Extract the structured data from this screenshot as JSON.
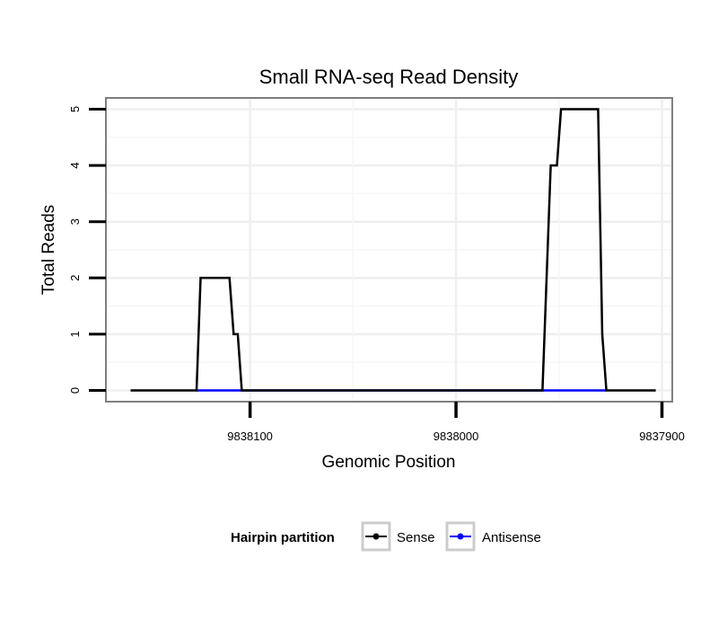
{
  "chart_data": {
    "type": "line",
    "title": "Small RNA-seq Read Density",
    "xlabel": "Genomic Position",
    "ylabel": "Total Reads",
    "x_reversed": true,
    "xlim": [
      9838170,
      9837895
    ],
    "ylim": [
      -0.2,
      5.2
    ],
    "x_ticks": [
      9838100,
      9838000,
      9837900
    ],
    "x_tick_labels": [
      "9838100",
      "9838000",
      "9837900"
    ],
    "y_ticks": [
      0,
      1,
      2,
      3,
      4,
      5
    ],
    "y_tick_labels": [
      "0",
      "1",
      "2",
      "3",
      "4",
      "5"
    ],
    "grid": true,
    "legend": {
      "title": "Hairpin partition",
      "position": "bottom",
      "entries": [
        "Sense",
        "Antisense"
      ]
    },
    "series": [
      {
        "name": "Sense",
        "color": "#000000",
        "points": [
          [
            9838158,
            0
          ],
          [
            9838126,
            0
          ],
          [
            9838124,
            2
          ],
          [
            9838110,
            2
          ],
          [
            9838108,
            1
          ],
          [
            9838106,
            1
          ],
          [
            9838104,
            0
          ],
          [
            9837958,
            0
          ],
          [
            9837954,
            4
          ],
          [
            9837951,
            4
          ],
          [
            9837949,
            5
          ],
          [
            9837931,
            5
          ],
          [
            9837929,
            1
          ],
          [
            9837927,
            0
          ],
          [
            9837903,
            0
          ]
        ]
      },
      {
        "name": "Antisense",
        "color": "#0000ff",
        "points": [
          [
            9838126,
            0
          ],
          [
            9838104,
            0
          ],
          [
            9837958,
            0
          ],
          [
            9837927,
            0
          ]
        ]
      }
    ]
  }
}
